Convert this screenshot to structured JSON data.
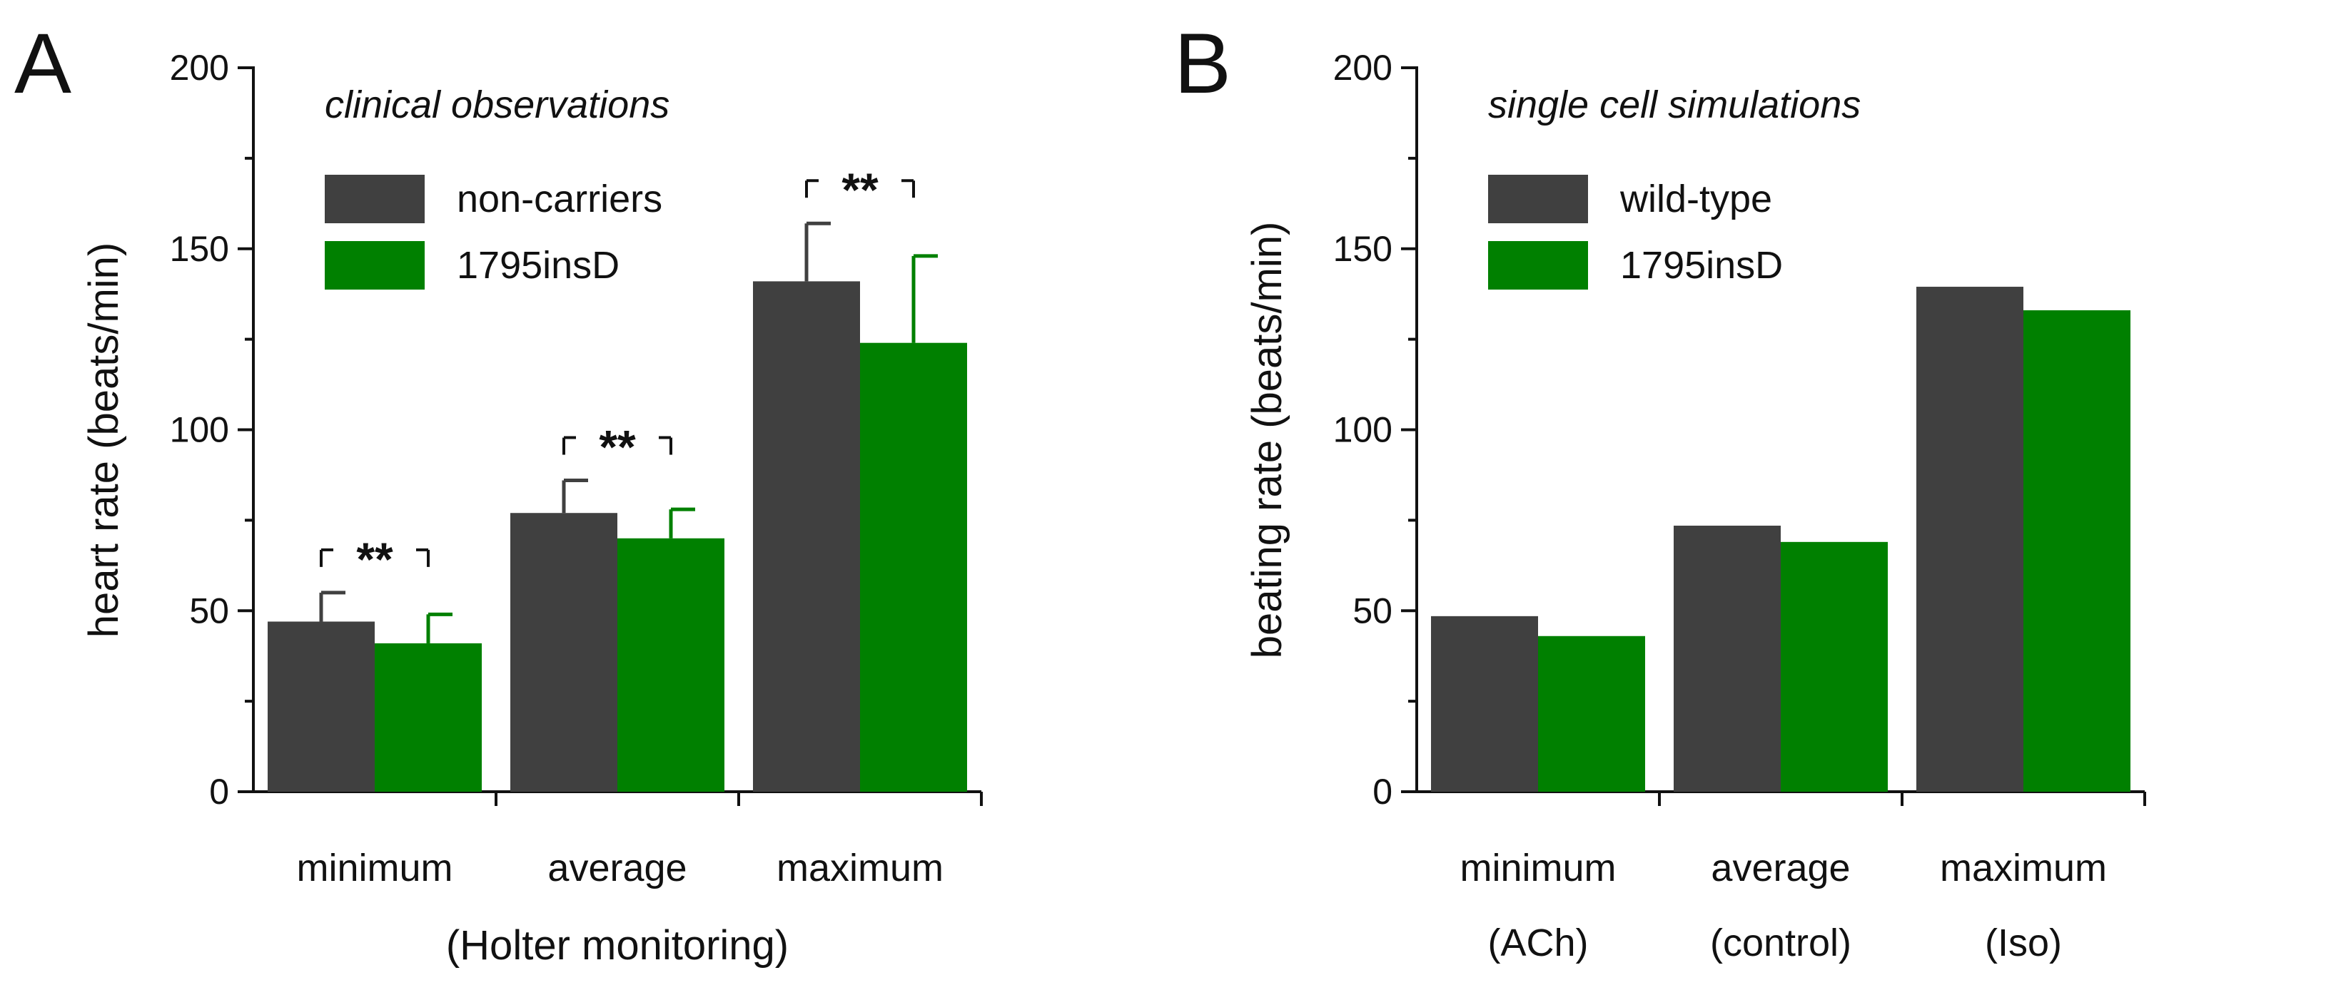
{
  "chart_data": [
    {
      "type": "bar",
      "panel_label": "A",
      "subtitle": "clinical observations",
      "ylabel": "heart rate (beats/min)",
      "xlabel": "(Holter monitoring)",
      "ylim": [
        0,
        200
      ],
      "yticks": [
        "0",
        "50",
        "100",
        "150",
        "200"
      ],
      "categories": [
        "minimum",
        "average",
        "maximum"
      ],
      "category_sublabels": [],
      "legend_placement": "top-left",
      "grid": false,
      "series": [
        {
          "name": "non-carriers",
          "color": "#404040",
          "values": [
            47,
            77,
            141
          ],
          "errors": [
            8,
            9,
            16
          ]
        },
        {
          "name": "1795insD",
          "color": "#008000",
          "values": [
            41,
            70,
            124
          ],
          "errors": [
            8,
            8,
            24
          ]
        }
      ],
      "annotations": [
        "**",
        "**",
        "**"
      ]
    },
    {
      "type": "bar",
      "panel_label": "B",
      "subtitle": "single cell simulations",
      "ylabel": "beating rate (beats/min)",
      "xlabel": "",
      "ylim": [
        0,
        200
      ],
      "yticks": [
        "0",
        "50",
        "100",
        "150",
        "200"
      ],
      "categories": [
        "minimum",
        "average",
        "maximum"
      ],
      "category_sublabels": [
        "(ACh)",
        "(control)",
        "(Iso)"
      ],
      "legend_placement": "top-left",
      "grid": false,
      "series": [
        {
          "name": "wild-type",
          "color": "#404040",
          "values": [
            48.5,
            73.5,
            139.5
          ]
        },
        {
          "name": "1795insD",
          "color": "#008000",
          "values": [
            43,
            69,
            133
          ]
        }
      ],
      "annotations": []
    }
  ]
}
